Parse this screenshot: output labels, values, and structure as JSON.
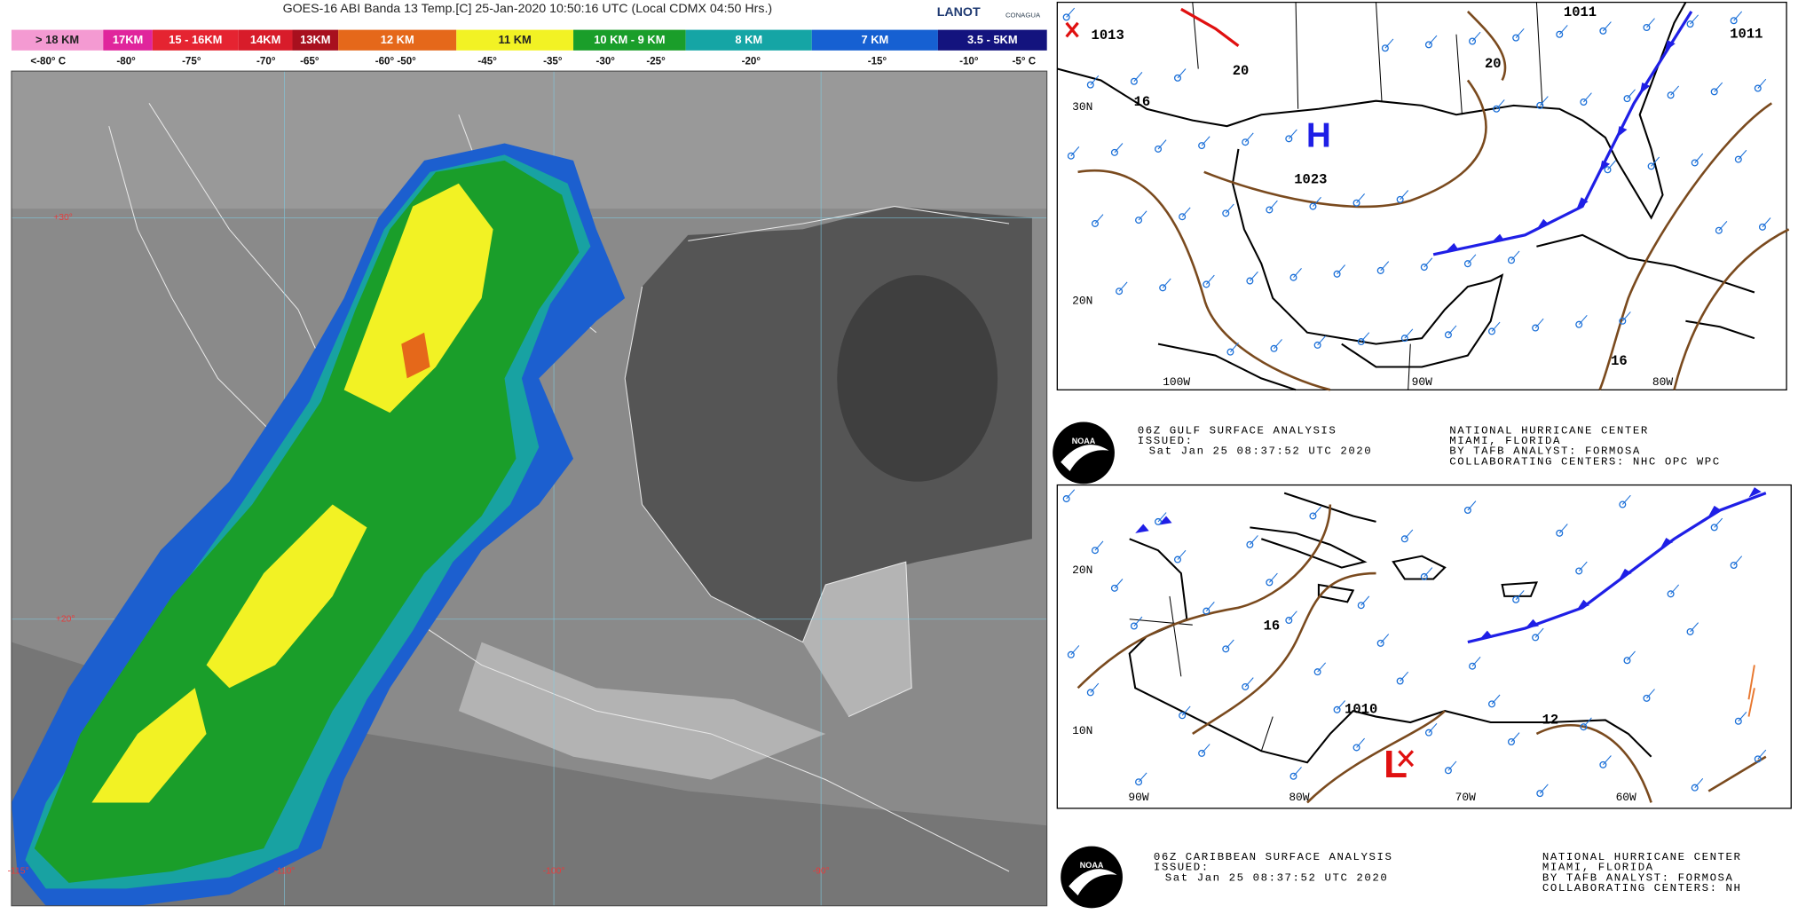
{
  "satellite": {
    "title": "GOES-16 ABI Banda 13 Temp.[C] 25-Jan-2020 10:50:16 UTC (Local CDMX  04:50 Hrs.)",
    "logo_lanot": "LANOT",
    "logo_conagua": "CONAGUA",
    "legend": [
      {
        "label": "> 18 KM",
        "color": "#f49ad2"
      },
      {
        "label": "17KM",
        "color": "#e0259c"
      },
      {
        "label": "15 - 16KM",
        "color": "#e52431"
      },
      {
        "label": "14KM",
        "color": "#d81c2a"
      },
      {
        "label": "13KM",
        "color": "#a8101e"
      },
      {
        "label": "12 KM",
        "color": "#e5681a"
      },
      {
        "label": "11 KM",
        "color": "#f2f224"
      },
      {
        "label": "10 KM -  9 KM",
        "color": "#1a9e2a"
      },
      {
        "label": "8 KM",
        "color": "#15a5a5"
      },
      {
        "label": "7 KM",
        "color": "#1660d2"
      },
      {
        "label": "3.5 - 5KM",
        "color": "#13137e"
      }
    ],
    "temperatures": [
      "<-80° C",
      "-80°",
      "-75°",
      "-70°",
      "-65°",
      "-60° -50°",
      "-45°",
      "-35°",
      "-30°",
      "-25°",
      "-20°",
      "-15°",
      "-10°",
      "-5°  C"
    ],
    "lat_labels": [
      "+30°",
      "+20°"
    ],
    "lon_labels": [
      "-115°",
      "-110°",
      "-100°",
      "-90°"
    ]
  },
  "gulf_map": {
    "pressures": [
      "1013",
      "1011",
      "1011",
      "1023"
    ],
    "high": "H",
    "feature_labels": [
      "20",
      "20",
      "16",
      "16"
    ],
    "lat_labels": [
      "30N",
      "20N"
    ],
    "lon_labels": [
      "100W",
      "90W",
      "80W"
    ],
    "logo": "NOAA",
    "caption": {
      "product": "06Z GULF SURFACE ANALYSIS",
      "issued": "ISSUED:",
      "time": "Sat Jan 25 08:37:52 UTC 2020",
      "center": "NATIONAL HURRICANE CENTER",
      "location": "MIAMI, FLORIDA",
      "analyst": "BY TAFB ANALYST: FORMOSA",
      "collaborating": "COLLABORATING CENTERS: NHC OPC WPC"
    }
  },
  "caribbean_map": {
    "pressures": [
      "1010"
    ],
    "low": "L",
    "feature_labels": [
      "16",
      "12"
    ],
    "lat_labels": [
      "20N",
      "10N"
    ],
    "lon_labels": [
      "90W",
      "80W",
      "70W",
      "60W"
    ],
    "logo": "NOAA",
    "caption": {
      "product": "06Z CARIBBEAN SURFACE ANALYSIS",
      "issued": "ISSUED:",
      "time": "Sat Jan 25 08:37:52 UTC 2020",
      "center": "NATIONAL HURRICANE CENTER",
      "location": "MIAMI, FLORIDA",
      "analyst": "BY TAFB ANALYST: FORMOSA",
      "collaborating": "COLLABORATING CENTERS: NH"
    }
  }
}
